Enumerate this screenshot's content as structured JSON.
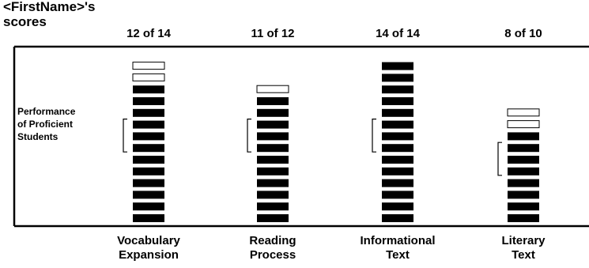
{
  "header": {
    "student_label_line1": "<FirstName>'s",
    "student_label_line2": "scores"
  },
  "proficient_label": [
    "Performance",
    "of Proficient",
    "Students"
  ],
  "colors": {
    "filled": "#000000",
    "empty": "#ffffff",
    "outline": "#000000"
  },
  "chart_data": {
    "type": "bar",
    "categories": [
      {
        "line1": "Vocabulary",
        "line2": "Expansion"
      },
      {
        "line1": "Reading",
        "line2": "Process"
      },
      {
        "line1": "Informational",
        "line2": "Text"
      },
      {
        "line1": "Literary",
        "line2": "Text"
      }
    ],
    "scores": [
      "12 of 14",
      "11 of 12",
      "14 of 14",
      "8 of 10"
    ],
    "series": [
      {
        "earned": [
          12,
          11,
          14,
          8
        ],
        "possible": [
          14,
          12,
          14,
          10
        ]
      }
    ],
    "proficient_range": [
      [
        7,
        9
      ],
      [
        7,
        9
      ],
      [
        7,
        9
      ],
      [
        5,
        7
      ]
    ]
  }
}
